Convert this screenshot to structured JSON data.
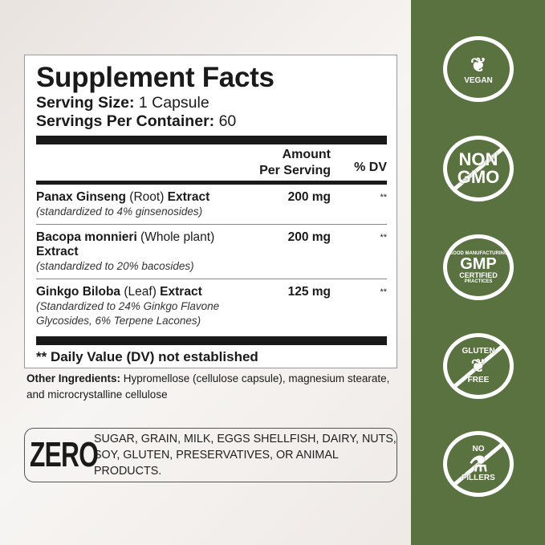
{
  "facts": {
    "title": "Supplement Facts",
    "serving_size_label": "Serving Size:",
    "serving_size_value": "1 Capsule",
    "servings_label": "Servings Per Container:",
    "servings_value": "60",
    "header_amount_1": "Amount",
    "header_amount_2": "Per Serving",
    "header_dv": "% DV",
    "rows": [
      {
        "name_bold": "Panax Ginseng",
        "name_plain": " (Root) ",
        "name_bold2": "Extract",
        "note": "(standardized to 4% ginsenosides)",
        "amount": "200 mg",
        "dv": "**"
      },
      {
        "name_bold": "Bacopa monnieri",
        "name_plain": " (Whole plant) ",
        "name_bold2": "Extract",
        "note": "(standardized to 20% bacosides)",
        "amount": "200 mg",
        "dv": "**"
      },
      {
        "name_bold": "Ginkgo Biloba",
        "name_plain": " (Leaf) ",
        "name_bold2": "Extract",
        "note": "(Standardized to 24% Ginkgo Flavone Glycosides, 6% Terpene Lacones)",
        "amount": "125 mg",
        "dv": "**"
      }
    ],
    "footnote": "** Daily Value (DV) not established"
  },
  "other": {
    "label": "Other Ingredients:",
    "text": " Hypromellose (cellulose capsule), magnesium stearate, and microcrystalline cellulose"
  },
  "zero": {
    "big": "ZERO",
    "text": "SUGAR, GRAIN, MILK, EGGS SHELLFISH, DAIRY, NUTS, SOY, GLUTEN, PRESERVATIVES, OR ANIMAL PRODUCTS."
  },
  "badges": [
    {
      "icon": "wheat-icon",
      "l1": "",
      "l2": "VEGAN"
    },
    {
      "icon": "no-icon",
      "l1": "NON",
      "l2": "GMO"
    },
    {
      "icon": "gmp-icon",
      "l1": "GMP",
      "l2": "CERTIFIED",
      "ring_top": "GOOD MANUFACTURING",
      "ring_bottom": "PRACTICES"
    },
    {
      "icon": "wheat-crossed-icon",
      "l1": "GLUTEN",
      "l2": "FREE"
    },
    {
      "icon": "flask-crossed-icon",
      "l1": "NO",
      "l2": "FILLERS"
    }
  ],
  "colors": {
    "panel": "#5a7240"
  }
}
